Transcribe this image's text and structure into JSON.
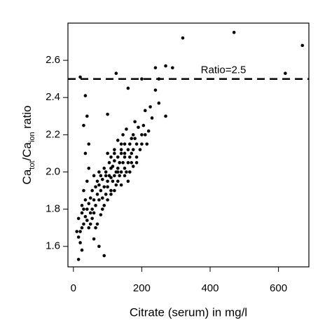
{
  "chart_data": {
    "type": "scatter",
    "xlabel": "Citrate (serum) in mg/l",
    "ylabel": [
      "Ca",
      "tot",
      "/Ca",
      "ion",
      " ratio"
    ],
    "annotation": "Ratio=2.5",
    "hline": 2.5,
    "color": "#000000",
    "xlim": [
      -16,
      689
    ],
    "ylim": [
      1.49,
      2.8
    ],
    "xticks": [
      0,
      200,
      400,
      600
    ],
    "yticks": [
      1.6,
      1.8,
      {
        "value": 2,
        "label": "2.0"
      },
      2.2,
      2.4,
      2.6
    ],
    "x": [
      320,
      470,
      670,
      620,
      20,
      125,
      240,
      270,
      290,
      250,
      200,
      160,
      240,
      35,
      250,
      210,
      40,
      100,
      230,
      270,
      180,
      190,
      220,
      175,
      155,
      130,
      200,
      165,
      140,
      145,
      120,
      150,
      170,
      185,
      160,
      135,
      110,
      125,
      95,
      105,
      115,
      140,
      150,
      160,
      170,
      180,
      130,
      120,
      100,
      90,
      80,
      85,
      95,
      110,
      75,
      70,
      65,
      60,
      55,
      50,
      45,
      40,
      35,
      30,
      25,
      20,
      15,
      15,
      25,
      30,
      35,
      40,
      45,
      50,
      55,
      60,
      65,
      70,
      75,
      80,
      85,
      90,
      95,
      100,
      105,
      110,
      115,
      120,
      125,
      130,
      135,
      140,
      145,
      150,
      155,
      160,
      165,
      170,
      175,
      185,
      195,
      205,
      215,
      225,
      60,
      70,
      80,
      90,
      100,
      110,
      120,
      130,
      140,
      150,
      30,
      40,
      50,
      25,
      35,
      45,
      55,
      65,
      75,
      85,
      15,
      25,
      10,
      90,
      75,
      60,
      20,
      45,
      30,
      100,
      110,
      120,
      130,
      140,
      150,
      165,
      175,
      185,
      200,
      210
    ],
    "y": [
      2.72,
      2.75,
      2.68,
      2.53,
      2.51,
      2.53,
      2.56,
      2.57,
      2.56,
      2.5,
      2.5,
      2.45,
      2.44,
      2.41,
      2.37,
      2.33,
      2.3,
      2.31,
      2.29,
      2.3,
      2.27,
      2.24,
      2.22,
      2.2,
      2.23,
      2.17,
      2.2,
      2.15,
      2.12,
      2.2,
      2.1,
      2.08,
      2.1,
      2.15,
      2.05,
      2.05,
      2.02,
      2.0,
      1.98,
      2.05,
      1.95,
      2.0,
      2.02,
      2.12,
      2.05,
      2.18,
      2.08,
      1.98,
      1.95,
      1.92,
      1.9,
      1.96,
      1.88,
      1.9,
      1.85,
      1.88,
      1.82,
      1.85,
      1.8,
      1.78,
      1.83,
      1.8,
      1.76,
      1.72,
      1.7,
      1.68,
      1.75,
      1.53,
      1.58,
      1.8,
      1.85,
      1.74,
      1.7,
      1.86,
      1.9,
      1.78,
      1.92,
      1.95,
      1.93,
      1.98,
      1.86,
      1.82,
      2.0,
      1.92,
      1.98,
      2.08,
      2.03,
      2.06,
      1.93,
      2.0,
      1.98,
      2.1,
      2.05,
      2.15,
      2.0,
      1.95,
      2.08,
      2.18,
      2.03,
      2.05,
      2.12,
      2.25,
      2.15,
      2.35,
      1.64,
      1.72,
      1.77,
      1.55,
      1.85,
      1.88,
      1.9,
      1.95,
      1.93,
      1.98,
      1.9,
      1.95,
      1.72,
      1.82,
      2.1,
      2.02,
      1.75,
      1.7,
      1.6,
      1.8,
      1.65,
      1.78,
      1.68,
      2.02,
      2.0,
      1.98,
      1.62,
      2.15,
      2.25,
      2.1,
      1.97,
      2.12,
      2.02,
      2.15,
      2.1,
      2.0,
      2.12,
      2.08,
      2.15,
      2.2
    ]
  }
}
